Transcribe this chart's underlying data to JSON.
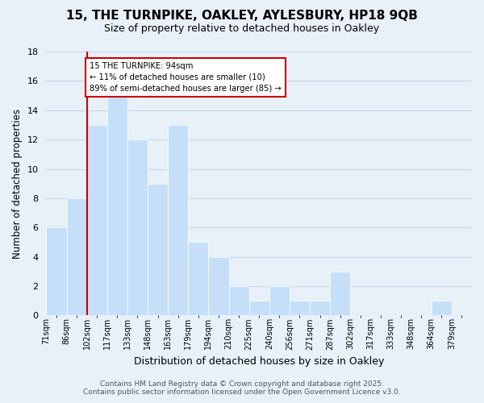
{
  "title": "15, THE TURNPIKE, OAKLEY, AYLESBURY, HP18 9QB",
  "subtitle": "Size of property relative to detached houses in Oakley",
  "xlabel": "Distribution of detached houses by size in Oakley",
  "ylabel": "Number of detached properties",
  "bin_labels": [
    "71sqm",
    "86sqm",
    "102sqm",
    "117sqm",
    "133sqm",
    "148sqm",
    "163sqm",
    "179sqm",
    "194sqm",
    "210sqm",
    "225sqm",
    "240sqm",
    "256sqm",
    "271sqm",
    "287sqm",
    "302sqm",
    "317sqm",
    "333sqm",
    "348sqm",
    "364sqm",
    "379sqm"
  ],
  "counts": [
    6,
    8,
    13,
    15,
    12,
    9,
    13,
    5,
    4,
    2,
    1,
    2,
    1,
    1,
    3,
    0,
    0,
    0,
    0,
    1,
    0
  ],
  "bar_color": "#c5dff8",
  "bar_edge_color": "#ffffff",
  "grid_color": "#c8d8e8",
  "bg_color": "#e8f0f8",
  "property_bar_index": 1,
  "annotation_text": "15 THE TURNPIKE: 94sqm\n← 11% of detached houses are smaller (10)\n89% of semi-detached houses are larger (85) →",
  "annotation_box_color": "#ffffff",
  "annotation_box_edge": "#cc0000",
  "vline_color": "#cc0000",
  "footer_line1": "Contains HM Land Registry data © Crown copyright and database right 2025.",
  "footer_line2": "Contains public sector information licensed under the Open Government Licence v3.0.",
  "ylim": [
    0,
    18
  ],
  "yticks": [
    0,
    2,
    4,
    6,
    8,
    10,
    12,
    14,
    16,
    18
  ]
}
